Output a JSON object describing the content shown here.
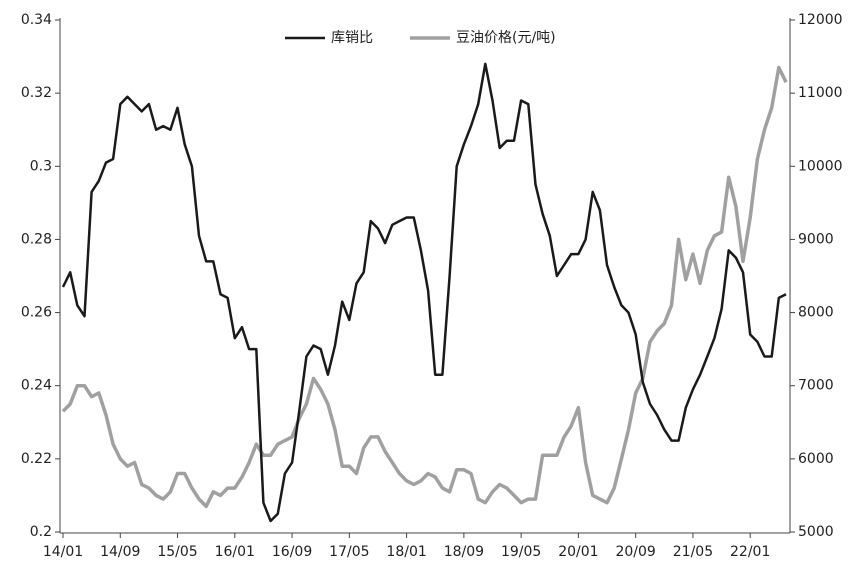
{
  "chart_data": {
    "type": "line",
    "categories": [
      "14/01",
      null,
      null,
      null,
      null,
      null,
      null,
      null,
      "14/09",
      null,
      null,
      null,
      null,
      null,
      null,
      null,
      "15/05",
      null,
      null,
      null,
      null,
      null,
      null,
      null,
      "16/01",
      null,
      null,
      null,
      null,
      null,
      null,
      null,
      "16/09",
      null,
      null,
      null,
      null,
      null,
      null,
      null,
      "17/05",
      null,
      null,
      null,
      null,
      null,
      null,
      null,
      "18/01",
      null,
      null,
      null,
      null,
      null,
      null,
      null,
      "18/09",
      null,
      null,
      null,
      null,
      null,
      null,
      null,
      "19/05",
      null,
      null,
      null,
      null,
      null,
      null,
      null,
      "20/01",
      null,
      null,
      null,
      null,
      null,
      null,
      null,
      "20/09",
      null,
      null,
      null,
      null,
      null,
      null,
      null,
      "21/05",
      null,
      null,
      null,
      null,
      null,
      null,
      null,
      "22/01",
      null,
      null,
      null,
      null,
      null
    ],
    "series": [
      {
        "name": "库销比",
        "color": "#1a1a1a",
        "values": [
          0.267,
          0.271,
          0.262,
          0.259,
          0.293,
          0.296,
          0.301,
          0.302,
          0.317,
          0.319,
          0.317,
          0.315,
          0.317,
          0.31,
          0.311,
          0.31,
          0.316,
          0.306,
          0.3,
          0.281,
          0.274,
          0.274,
          0.265,
          0.264,
          0.253,
          0.256,
          0.25,
          0.25,
          0.208,
          0.203,
          0.205,
          0.216,
          0.219,
          0.233,
          0.248,
          0.251,
          0.25,
          0.243,
          0.251,
          0.263,
          0.258,
          0.268,
          0.271,
          0.285,
          0.283,
          0.279,
          0.284,
          0.285,
          0.286,
          0.286,
          0.277,
          0.266,
          0.243,
          0.243,
          0.27,
          0.3,
          0.306,
          0.311,
          0.317,
          0.328,
          0.318,
          0.305,
          0.307,
          0.307,
          0.318,
          0.317,
          0.295,
          0.287,
          0.281,
          0.27,
          0.273,
          0.276,
          0.276,
          0.28,
          0.293,
          0.288,
          0.273,
          0.267,
          0.262,
          0.26,
          0.254,
          0.241,
          0.235,
          0.232,
          0.228,
          0.225,
          0.225,
          0.234,
          0.239,
          0.243,
          0.248,
          0.253,
          0.261,
          0.277,
          0.275,
          0.271,
          0.254,
          0.252,
          0.248,
          0.248,
          0.264,
          0.265
        ]
      },
      {
        "name": "豆油价格(元/吨)",
        "color": "#a0a0a0",
        "axis": "y2",
        "values": [
          6650,
          6750,
          7000,
          7000,
          6850,
          6900,
          6600,
          6200,
          6000,
          5900,
          5950,
          5650,
          5600,
          5500,
          5450,
          5550,
          5800,
          5800,
          5600,
          5450,
          5350,
          5550,
          5500,
          5600,
          5600,
          5750,
          5950,
          6200,
          6050,
          6050,
          6200,
          6250,
          6300,
          6550,
          6750,
          7100,
          6950,
          6750,
          6400,
          5900,
          5900,
          5800,
          6150,
          6300,
          6300,
          6100,
          5950,
          5800,
          5700,
          5650,
          5700,
          5800,
          5750,
          5600,
          5550,
          5850,
          5850,
          5800,
          5450,
          5400,
          5550,
          5650,
          5600,
          5500,
          5400,
          5450,
          5450,
          6050,
          6050,
          6050,
          6300,
          6450,
          6700,
          5950,
          5500,
          5450,
          5400,
          5600,
          6000,
          6400,
          6900,
          7100,
          7600,
          7750,
          7850,
          8100,
          9000,
          8450,
          8800,
          8400,
          8850,
          9050,
          9100,
          9850,
          9450,
          8700,
          9300,
          10100,
          10500,
          10800,
          11350,
          11150
        ]
      }
    ],
    "ylim": [
      0.2,
      0.34
    ],
    "yticks": [
      0.2,
      0.22,
      0.24,
      0.26,
      0.28,
      0.3,
      0.32,
      0.34
    ],
    "y2lim": [
      5000,
      12000
    ],
    "y2ticks": [
      5000,
      6000,
      7000,
      8000,
      9000,
      10000,
      11000,
      12000
    ]
  }
}
